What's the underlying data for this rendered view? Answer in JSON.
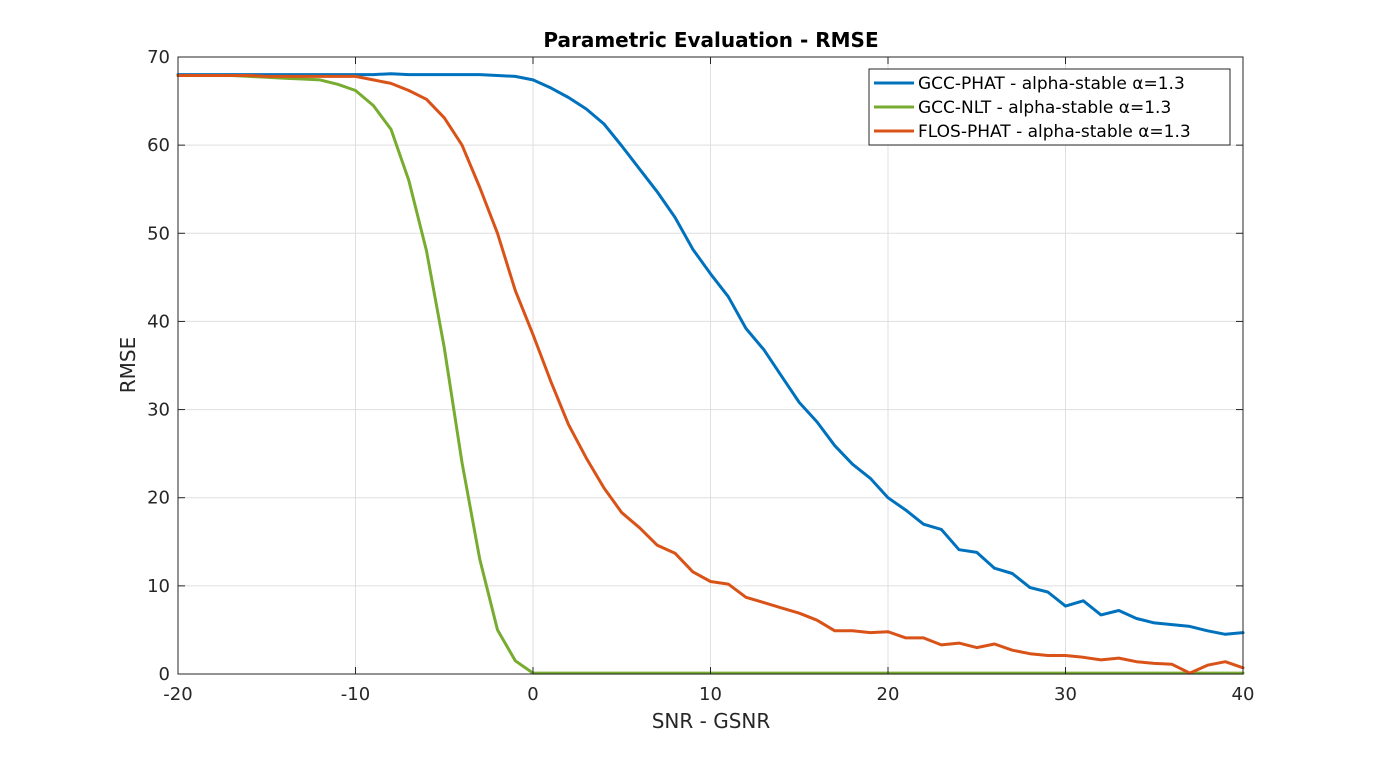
{
  "chart_data": {
    "type": "line",
    "title": "Parametric Evaluation - RMSE",
    "xlabel": "SNR - GSNR",
    "ylabel": "RMSE",
    "xlim": [
      -20,
      40
    ],
    "ylim": [
      0,
      70
    ],
    "xticks": [
      -20,
      -10,
      0,
      10,
      20,
      30,
      40
    ],
    "yticks": [
      0,
      10,
      20,
      30,
      40,
      50,
      60,
      70
    ],
    "xtick_labels": [
      "-20",
      "-10",
      "0",
      "10",
      "20",
      "30",
      "40"
    ],
    "ytick_labels": [
      "0",
      "10",
      "20",
      "30",
      "40",
      "50",
      "60",
      "70"
    ],
    "grid": true,
    "legend_position": "top-right",
    "series": [
      {
        "name": "GCC-PHAT - alpha-stable α=1.3",
        "color": "#0072BD",
        "x": [
          -20,
          -19,
          -18,
          -17,
          -16,
          -15,
          -14,
          -13,
          -12,
          -11,
          -10,
          -9,
          -8,
          -7,
          -6,
          -5,
          -4,
          -3,
          -2,
          -1,
          0,
          1,
          2,
          3,
          4,
          5,
          6,
          7,
          8,
          9,
          10,
          11,
          12,
          13,
          14,
          15,
          16,
          17,
          18,
          19,
          20,
          21,
          22,
          23,
          24,
          25,
          26,
          27,
          28,
          29,
          30,
          31,
          32,
          33,
          34,
          35,
          36,
          37,
          38,
          39,
          40
        ],
        "y": [
          68.0,
          68.0,
          68.0,
          68.0,
          68.0,
          68.0,
          68.0,
          68.0,
          68.0,
          68.0,
          68.0,
          68.0,
          68.1,
          68.0,
          68.0,
          68.0,
          68.0,
          68.0,
          67.9,
          67.8,
          67.4,
          66.5,
          65.4,
          64.1,
          62.4,
          59.9,
          57.3,
          54.7,
          51.8,
          48.2,
          45.4,
          42.8,
          39.2,
          36.8,
          33.8,
          30.8,
          28.6,
          25.9,
          23.8,
          22.2,
          20.0,
          18.6,
          17.0,
          16.4,
          14.1,
          13.8,
          12.0,
          11.4,
          9.8,
          9.3,
          7.7,
          8.3,
          6.7,
          7.2,
          6.3,
          5.8,
          5.6,
          5.4,
          4.9,
          4.5,
          4.7
        ]
      },
      {
        "name": "GCC-NLT - alpha-stable α=1.3",
        "color": "#77AC30",
        "x": [
          -20,
          -19,
          -18,
          -17,
          -16,
          -15,
          -14,
          -13,
          -12,
          -11,
          -10,
          -9,
          -8,
          -7,
          -6,
          -5,
          -4,
          -3,
          -2,
          -1,
          0,
          1,
          2,
          3,
          4,
          5,
          6,
          7,
          8,
          9,
          10,
          11,
          12,
          13,
          14,
          15,
          16,
          17,
          18,
          19,
          20,
          21,
          22,
          23,
          24,
          25,
          26,
          27,
          28,
          29,
          30,
          31,
          32,
          33,
          34,
          35,
          36,
          37,
          38,
          39,
          40
        ],
        "y": [
          67.9,
          67.9,
          67.9,
          67.9,
          67.8,
          67.7,
          67.6,
          67.5,
          67.4,
          66.9,
          66.2,
          64.5,
          61.8,
          56.0,
          48.0,
          37.0,
          24.0,
          13.0,
          5.0,
          1.5,
          0.1,
          0.1,
          0.1,
          0.1,
          0.1,
          0.1,
          0.1,
          0.1,
          0.1,
          0.1,
          0.1,
          0.1,
          0.1,
          0.1,
          0.1,
          0.1,
          0.1,
          0.1,
          0.1,
          0.1,
          0.1,
          0.1,
          0.1,
          0.1,
          0.1,
          0.1,
          0.1,
          0.1,
          0.1,
          0.1,
          0.1,
          0.1,
          0.1,
          0.1,
          0.1,
          0.1,
          0.1,
          0.1,
          0.1,
          0.1,
          0.1
        ]
      },
      {
        "name": "FLOS-PHAT - alpha-stable α=1.3",
        "color": "#D95319",
        "x": [
          -20,
          -19,
          -18,
          -17,
          -16,
          -15,
          -14,
          -13,
          -12,
          -11,
          -10,
          -9,
          -8,
          -7,
          -6,
          -5,
          -4,
          -3,
          -2,
          -1,
          0,
          1,
          2,
          3,
          4,
          5,
          6,
          7,
          8,
          9,
          10,
          11,
          12,
          13,
          14,
          15,
          16,
          17,
          18,
          19,
          20,
          21,
          22,
          23,
          24,
          25,
          26,
          27,
          28,
          29,
          30,
          31,
          32,
          33,
          34,
          35,
          36,
          37,
          38,
          39,
          40
        ],
        "y": [
          67.9,
          67.9,
          67.9,
          67.9,
          67.9,
          67.8,
          67.8,
          67.8,
          67.8,
          67.8,
          67.8,
          67.4,
          67.0,
          66.2,
          65.2,
          63.1,
          60.0,
          55.2,
          50.0,
          43.5,
          38.5,
          33.2,
          28.3,
          24.5,
          21.1,
          18.3,
          16.6,
          14.6,
          13.7,
          11.6,
          10.5,
          10.2,
          8.7,
          8.1,
          7.5,
          6.9,
          6.1,
          4.9,
          4.9,
          4.7,
          4.8,
          4.1,
          4.1,
          3.3,
          3.5,
          3.0,
          3.4,
          2.7,
          2.3,
          2.1,
          2.1,
          1.9,
          1.6,
          1.8,
          1.4,
          1.2,
          1.1,
          0.1,
          1.0,
          1.4,
          0.7
        ]
      }
    ]
  }
}
